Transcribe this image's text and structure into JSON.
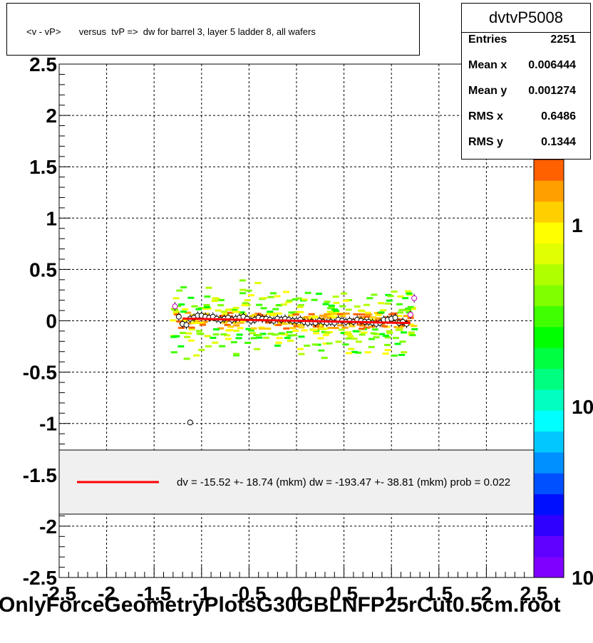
{
  "title": "<v - vP>       versus  tvP =>  dw for barrel 3, layer 5 ladder 8, all wafers",
  "stats": {
    "name": "dvtvP5008",
    "rows": [
      {
        "label": "Entries",
        "value": "2251"
      },
      {
        "label": "Mean x",
        "value": "0.006444"
      },
      {
        "label": "Mean y",
        "value": "0.001274"
      },
      {
        "label": "RMS x",
        "value": "0.6486"
      },
      {
        "label": "RMS y",
        "value": "0.1344"
      }
    ]
  },
  "file_label": "OnlyForceGeometryPlotsG30GBLNFP25rCut0.5cm.root",
  "colors": {
    "fit_line": "#ff0000",
    "legend_bg": "#f0f0f0",
    "grid": "#000000",
    "palette": [
      "#8000ff",
      "#6000ff",
      "#3000ff",
      "#0010ff",
      "#0050ff",
      "#0090ff",
      "#00c8ff",
      "#00ffff",
      "#00ffc0",
      "#00ff80",
      "#00ff40",
      "#00ff00",
      "#40ff00",
      "#80ff00",
      "#b0ff00",
      "#e0ff00",
      "#ffff00",
      "#ffd000",
      "#ffa000",
      "#ff6000"
    ]
  },
  "chart_data": {
    "type": "heatmap",
    "xlim": [
      -2.5,
      2.5
    ],
    "ylim": [
      -2.5,
      2.5
    ],
    "x_ticks": [
      "-2.5",
      "-2",
      "-1.5",
      "-1",
      "-0.5",
      "0",
      "0.5",
      "1",
      "1.5",
      "2",
      "2.5"
    ],
    "y_ticks": [
      "-2.5",
      "-2",
      "-1.5",
      "-1",
      "-0.5",
      "0",
      "0.5",
      "1",
      "1.5",
      "2",
      "2.5"
    ],
    "colorbar_labels": [
      "1",
      "10",
      "10"
    ],
    "grid": true,
    "profile_points": {
      "x": [
        -1.28,
        -1.24,
        -1.2,
        -1.16,
        -1.12,
        -1.08,
        -1.04,
        -1.0,
        -0.96,
        -0.92,
        -0.88,
        -0.84,
        -0.8,
        -0.76,
        -0.72,
        -0.68,
        -0.64,
        -0.6,
        -0.56,
        -0.52,
        -0.48,
        -0.44,
        -0.4,
        -0.36,
        -0.32,
        -0.28,
        -0.24,
        -0.2,
        -0.16,
        -0.12,
        -0.08,
        -0.04,
        0.0,
        0.04,
        0.08,
        0.12,
        0.16,
        0.2,
        0.24,
        0.28,
        0.32,
        0.36,
        0.4,
        0.44,
        0.48,
        0.52,
        0.56,
        0.6,
        0.64,
        0.68,
        0.72,
        0.76,
        0.8,
        0.84,
        0.88,
        0.92,
        0.96,
        1.0,
        1.04,
        1.08,
        1.12,
        1.16,
        1.2,
        1.24
      ],
      "y": [
        0.14,
        0.04,
        -0.03,
        -0.04,
        0.02,
        0.03,
        0.05,
        0.05,
        0.04,
        0.03,
        0.04,
        0.02,
        0.01,
        0.02,
        0.03,
        0.01,
        0.02,
        0.03,
        0.04,
        0.02,
        0.0,
        0.01,
        0.03,
        0.02,
        0.02,
        0.01,
        0.0,
        0.02,
        0.01,
        0.02,
        0.01,
        0.0,
        0.0,
        0.01,
        -0.01,
        -0.02,
        -0.01,
        -0.02,
        0.0,
        -0.01,
        -0.02,
        -0.01,
        -0.02,
        0.01,
        0.0,
        -0.01,
        0.0,
        -0.01,
        0.01,
        0.0,
        -0.01,
        -0.01,
        -0.02,
        -0.03,
        -0.02,
        0.01,
        0.01,
        0.02,
        0.03,
        -0.02,
        -0.01,
        -0.03,
        0.06,
        0.22
      ],
      "outlier": {
        "x": -1.12,
        "y": -0.99
      }
    },
    "fit_line": {
      "x": [
        -1.2,
        1.2
      ],
      "y": [
        0.022,
        -0.022
      ]
    },
    "legend": {
      "text": "dv =  -15.52 +- 18.74 (mkm) dw = -193.47 +- 38.81 (mkm) prob = 0.022"
    }
  }
}
